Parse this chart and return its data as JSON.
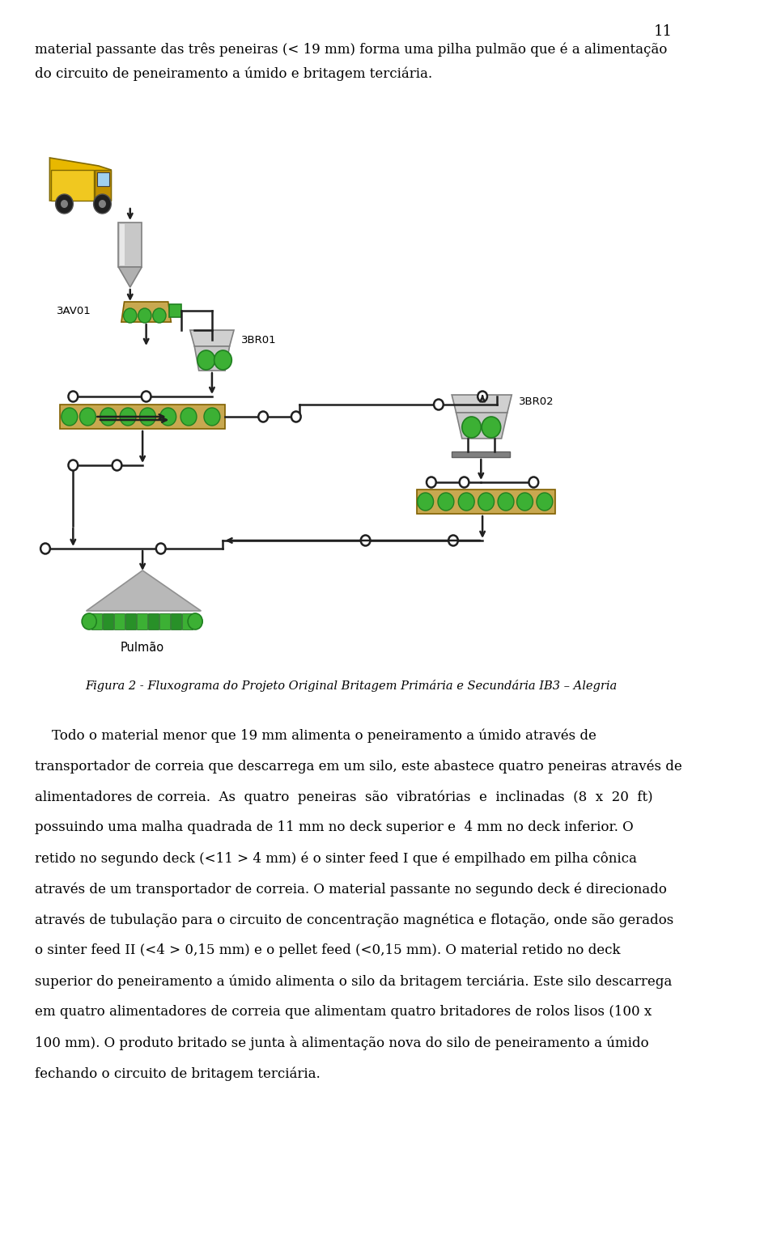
{
  "page_number": "11",
  "top_text_line1": "material passante das três peneiras (< 19 mm) forma uma pilha pulmão que é a alimentação",
  "top_text_line2": "do circuito de peneiramento a úmido e britagem terciária.",
  "label_3av01": "3AV01",
  "label_3br01": "3BR01",
  "label_3br02": "3BR02",
  "label_pulmao": "Pulmão",
  "figure_caption": "Figura 2 - Fluxograma do Projeto Original Britagem Primária e Secundária IB3 – Alegria",
  "bg_color": "#ffffff",
  "text_color": "#000000",
  "green": "#3cb034",
  "tan": "#c8a850",
  "gray1": "#c8c8c8",
  "gray2": "#b0b0b0",
  "yellow": "#e8b800",
  "dark": "#202020",
  "body_lines": [
    "    Todo o material menor que 19 mm alimenta o peneiramento a úmido através de",
    "transportador de correia que descarrega em um silo, este abastece quatro peneiras através de",
    "alimentadores de correia.  As  quatro  peneiras  são  vibratórias  e  inclinadas  (8  x  20  ft)",
    "possuindo uma malha quadrada de 11 mm no deck superior e  4 mm no deck inferior. O",
    "retido no segundo deck (<11 > 4 mm) é o sinter feed I que é empilhado em pilha cônica",
    "através de um transportador de correia. O material passante no segundo deck é direcionado",
    "através de tubulação para o circuito de concentração magnética e flotação, onde são gerados",
    "o sinter feed II (<4 > 0,15 mm) e o pellet feed (<0,15 mm). O material retido no deck",
    "superior do peneiramento a úmido alimenta o silo da britagem terciária. Este silo descarrega",
    "em quatro alimentadores de correia que alimentam quatro britadores de rolos lisos (100 x",
    "100 mm). O produto britado se junta à alimentação nova do silo de peneiramento a úmido",
    "fechando o circuito de britagem terciária."
  ]
}
